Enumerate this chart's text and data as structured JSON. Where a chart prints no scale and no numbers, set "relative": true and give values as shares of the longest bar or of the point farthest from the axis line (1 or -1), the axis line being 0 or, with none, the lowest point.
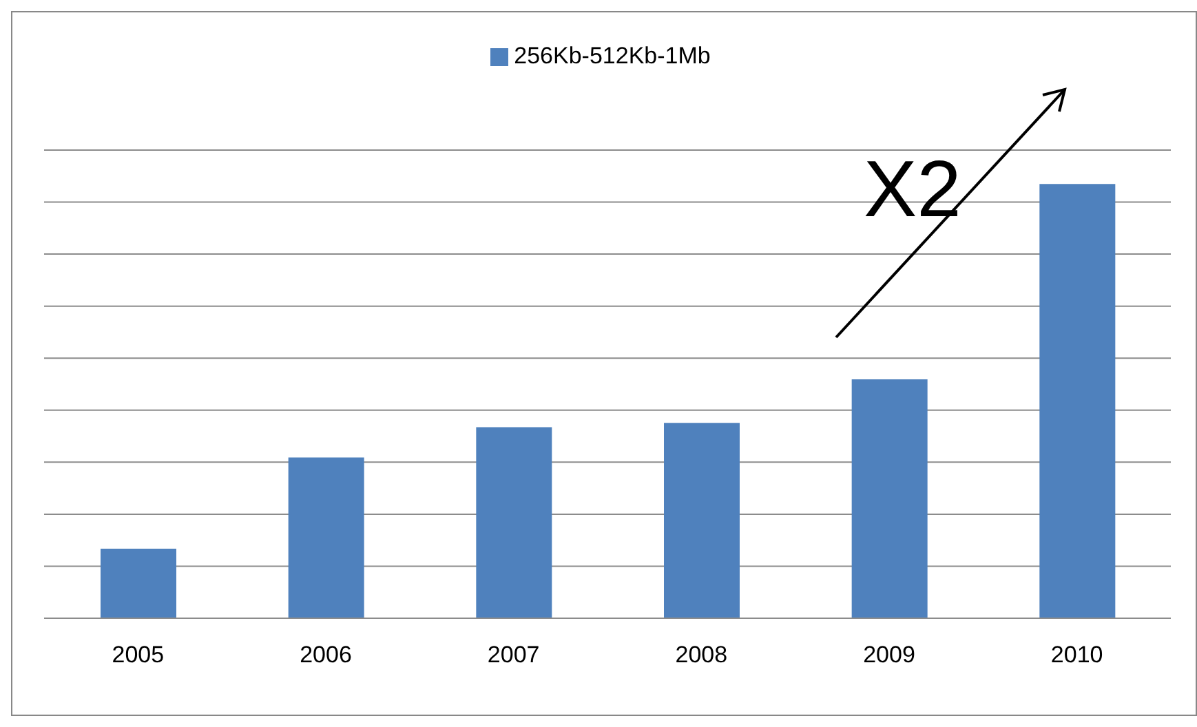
{
  "chart_data": {
    "type": "bar",
    "relative": true,
    "categories": [
      "2005",
      "2006",
      "2007",
      "2008",
      "2009",
      "2010"
    ],
    "series": [
      {
        "name": "256Kb-512Kb-1Mb",
        "color": "#4f81bd",
        "values": [
          0.16,
          0.37,
          0.44,
          0.45,
          0.55,
          1
        ]
      }
    ],
    "grid": "y",
    "legend": "top",
    "annotations": [
      "X2"
    ]
  }
}
